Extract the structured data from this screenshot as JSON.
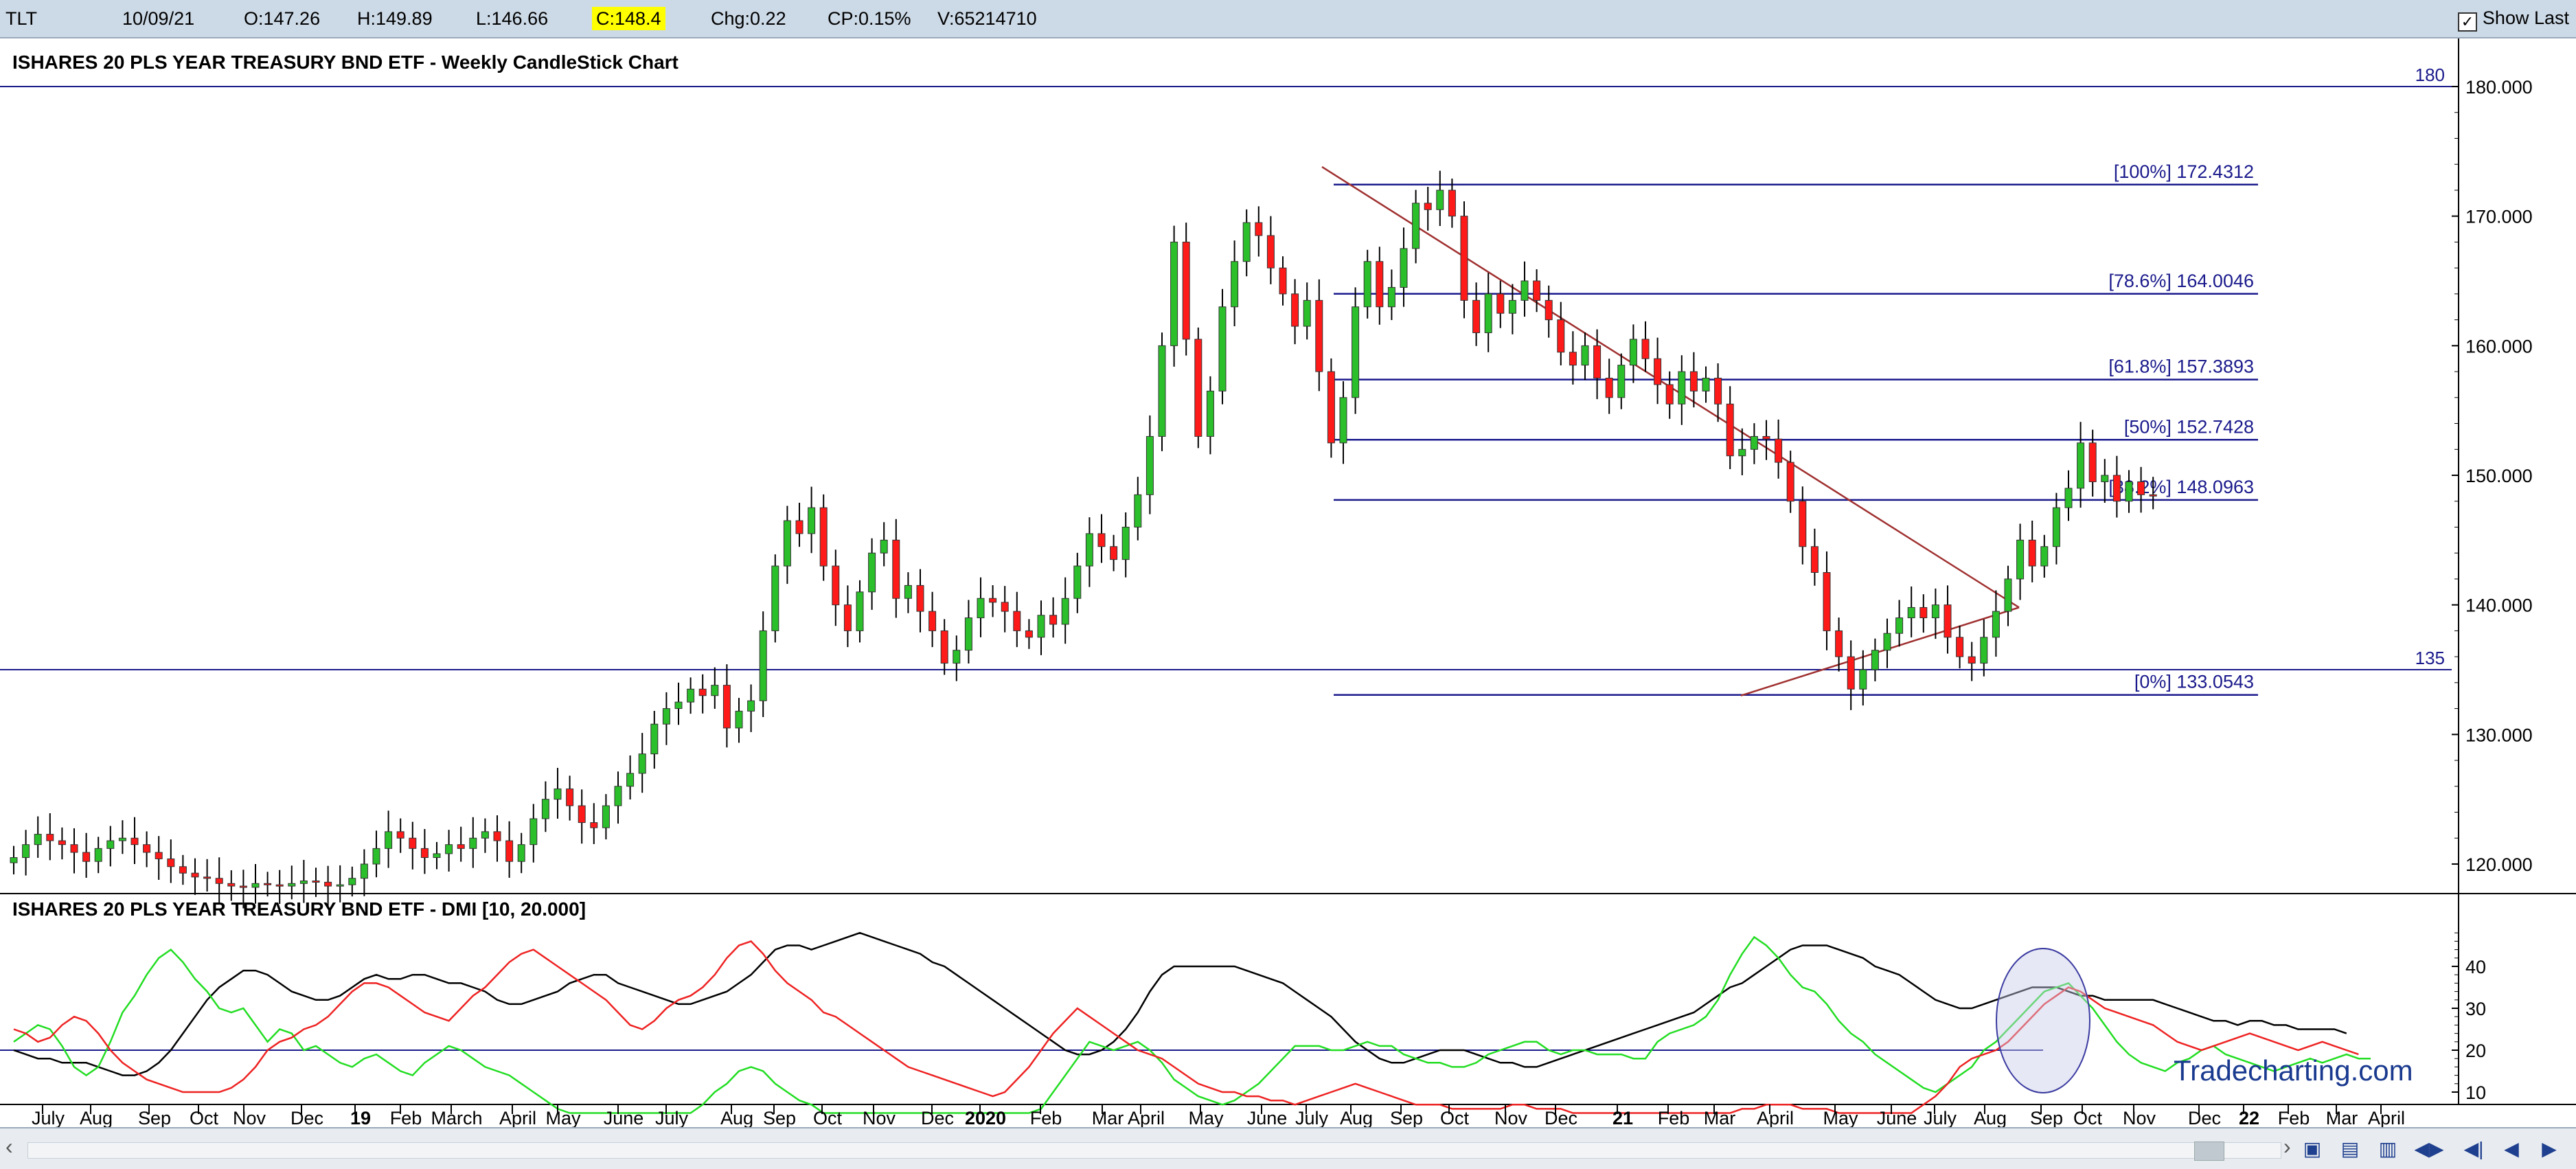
{
  "topbar": {
    "symbol": "TLT",
    "date": "10/09/21",
    "open": "O:147.26",
    "high": "H:149.89",
    "low": "L:146.66",
    "close": "C:148.4",
    "change": "Chg:0.22",
    "change_pct": "CP:0.15%",
    "volume": "V:65214710",
    "show_last_label": "Show Last"
  },
  "colors": {
    "up": "#2bbf2b",
    "down": "#ff1a1a",
    "fib_line": "#1a1a8c",
    "trend_line": "#a03030",
    "dmi_adx": "#000000",
    "dmi_plus": "#22dd22",
    "dmi_minus": "#ee2222",
    "ref_line": "#1a1a8c",
    "watermark": "#1a3a8f"
  },
  "chart_data": [
    {
      "type": "candlestick",
      "title": "ISHARES 20 PLS YEAR TREASURY BND ETF - Weekly CandleStick Chart",
      "ylim": [
        118,
        182
      ],
      "yticks": [
        120,
        130,
        140,
        150,
        160,
        170,
        180
      ],
      "ytick_labels": [
        "120.000",
        "130.000",
        "140.000",
        "150.000",
        "160.000",
        "170.000",
        "180.000"
      ],
      "horizontal_lines": [
        {
          "label": "180",
          "value": 180
        },
        {
          "label": "135",
          "value": 135
        }
      ],
      "fib_levels": [
        {
          "label": "[100%] 172.4312",
          "value": 172.4312
        },
        {
          "label": "[78.6%] 164.0046",
          "value": 164.0046
        },
        {
          "label": "[61.8%] 157.3893",
          "value": 157.3893
        },
        {
          "label": "[50%] 152.7428",
          "value": 152.7428
        },
        {
          "label": "[38.2%] 148.0963",
          "value": 148.0963
        },
        {
          "label": "[0%] 133.0543",
          "value": 133.0543
        }
      ],
      "trendlines": [
        {
          "from": [
            "2020-07",
            173.8
          ],
          "to": [
            "2021-08",
            139.8
          ]
        },
        {
          "from": [
            "2021-03",
            133.0
          ],
          "to": [
            "2021-08",
            139.8
          ]
        }
      ],
      "closes": [
        120.5,
        121.5,
        122.3,
        121.8,
        121.5,
        120.9,
        120.2,
        121.2,
        121.8,
        122.0,
        121.5,
        120.9,
        120.4,
        119.8,
        119.3,
        119.0,
        118.9,
        118.5,
        118.3,
        118.2,
        118.5,
        118.4,
        118.3,
        118.5,
        118.7,
        118.6,
        118.3,
        118.4,
        118.9,
        120.0,
        121.2,
        122.5,
        122.0,
        121.2,
        120.5,
        120.8,
        121.5,
        121.2,
        122.0,
        122.5,
        121.8,
        120.2,
        121.5,
        123.5,
        125.0,
        125.8,
        124.5,
        123.2,
        122.8,
        124.5,
        126.0,
        127.0,
        128.5,
        130.8,
        132.0,
        132.5,
        133.5,
        133.0,
        133.8,
        130.5,
        131.8,
        132.6,
        138.0,
        143.0,
        146.5,
        145.5,
        147.5,
        143.0,
        140.0,
        138.0,
        141.0,
        144.0,
        145.0,
        140.5,
        141.5,
        139.5,
        138.0,
        135.5,
        136.5,
        139.0,
        140.5,
        140.2,
        139.5,
        138.0,
        137.5,
        139.2,
        138.5,
        140.5,
        143.0,
        145.5,
        144.5,
        143.5,
        146.0,
        148.5,
        153.0,
        160.0,
        168.0,
        160.5,
        153.0,
        156.5,
        163.0,
        166.5,
        169.5,
        168.5,
        166.0,
        164.0,
        161.5,
        163.5,
        158.0,
        152.5,
        156.0,
        163.0,
        166.5,
        163.0,
        164.5,
        167.5,
        171.0,
        170.5,
        172.0,
        170.0,
        163.5,
        161.0,
        164.0,
        162.5,
        163.5,
        165.0,
        163.5,
        162.0,
        159.5,
        158.5,
        160.0,
        157.5,
        156.0,
        158.5,
        160.5,
        159.0,
        157.0,
        155.5,
        158.0,
        156.5,
        157.5,
        155.5,
        151.5,
        152.0,
        153.0,
        152.8,
        151.0,
        148.0,
        144.5,
        142.5,
        138.0,
        136.0,
        133.5,
        135.0,
        136.5,
        137.8,
        139.0,
        139.8,
        139.0,
        140.0,
        137.5,
        136.0,
        135.5,
        137.5,
        139.5,
        142.0,
        145.0,
        143.0,
        144.5,
        147.5,
        149.0,
        152.5,
        149.5,
        150.0,
        148.0,
        149.5,
        148.5,
        148.4
      ],
      "dmi": {
        "title": "ISHARES 20 PLS YEAR TREASURY BND ETF - DMI [10, 20.000]",
        "ylim": [
          5,
          48
        ],
        "yticks": [
          10,
          20,
          30,
          40
        ],
        "ref_level": 20,
        "series": [
          {
            "name": "",
            "values": [
              20,
              19,
              18,
              18,
              17,
              17,
              17,
              16,
              15,
              14,
              14,
              15,
              17,
              20,
              24,
              28,
              32,
              35,
              37,
              39,
              39,
              38,
              36,
              34,
              33,
              32,
              32,
              33,
              35,
              37,
              38,
              37,
              37,
              38,
              38,
              37,
              36,
              36,
              35,
              34,
              32,
              31,
              31,
              32,
              33,
              34,
              36,
              37,
              38,
              38,
              36,
              35,
              34,
              33,
              32,
              31,
              31,
              32,
              33,
              34,
              36,
              38,
              41,
              44,
              45,
              45,
              44,
              45,
              46,
              47,
              48,
              47,
              46,
              45,
              44,
              43,
              41,
              40,
              38,
              36,
              34,
              32,
              30,
              28,
              26,
              24,
              22,
              20,
              19,
              19,
              20,
              22,
              25,
              29,
              34,
              38,
              40,
              40,
              40,
              40,
              40,
              40,
              39,
              38,
              37,
              36,
              34,
              32,
              30,
              28,
              25,
              22,
              20,
              18,
              17,
              17,
              18,
              19,
              20,
              20,
              20,
              19,
              18,
              17,
              17,
              16,
              16,
              17,
              18,
              19,
              20,
              21,
              22,
              23,
              24,
              25,
              26,
              27,
              28,
              29,
              31,
              33,
              35,
              36,
              38,
              40,
              42,
              44,
              45,
              45,
              45,
              44,
              43,
              42,
              40,
              39,
              38,
              36,
              34,
              32,
              31,
              30,
              30,
              31,
              32,
              33,
              34,
              35,
              35,
              35,
              34,
              33,
              33,
              32,
              32,
              32,
              32,
              32,
              31,
              30,
              29,
              28,
              27,
              27,
              26,
              27,
              27,
              26,
              26,
              25,
              25,
              25,
              25,
              24
            ]
          },
          {
            "name": "",
            "values": [
              22,
              24,
              26,
              25,
              21,
              16,
              14,
              16,
              22,
              29,
              33,
              38,
              42,
              44,
              41,
              37,
              34,
              30,
              29,
              30,
              26,
              22,
              25,
              24,
              20,
              21,
              19,
              17,
              16,
              18,
              19,
              17,
              15,
              14,
              17,
              19,
              21,
              20,
              18,
              16,
              15,
              14,
              12,
              10,
              8,
              6,
              4,
              3,
              2,
              2,
              1,
              1,
              1,
              1,
              2,
              3,
              5,
              7,
              10,
              12,
              15,
              16,
              15,
              12,
              10,
              8,
              7,
              5,
              3,
              2,
              2,
              1,
              1,
              1,
              1,
              2,
              3,
              4,
              5,
              4,
              3,
              2,
              2,
              2,
              4,
              6,
              10,
              14,
              18,
              22,
              21,
              20,
              21,
              22,
              20,
              17,
              13,
              11,
              9,
              8,
              7,
              8,
              10,
              12,
              15,
              18,
              21,
              21,
              21,
              20,
              20,
              21,
              22,
              21,
              21,
              19,
              18,
              17,
              17,
              16,
              16,
              17,
              19,
              20,
              21,
              22,
              22,
              20,
              19,
              20,
              20,
              19,
              19,
              19,
              18,
              18,
              22,
              24,
              25,
              26,
              28,
              32,
              38,
              43,
              47,
              45,
              42,
              38,
              35,
              34,
              31,
              27,
              24,
              22,
              19,
              17,
              15,
              13,
              11,
              10,
              12,
              14,
              16,
              20,
              22,
              25,
              28,
              31,
              34,
              35,
              36,
              33,
              30,
              26,
              22,
              19,
              17,
              16,
              15,
              17,
              18,
              20,
              21,
              19,
              18,
              17,
              16,
              15,
              16,
              17,
              18,
              17,
              18,
              19,
              18,
              18
            ]
          },
          {
            "name": "",
            "values": [
              25,
              24,
              22,
              23,
              26,
              28,
              27,
              24,
              20,
              17,
              15,
              13,
              12,
              11,
              10,
              10,
              10,
              10,
              11,
              13,
              16,
              20,
              22,
              23,
              25,
              26,
              28,
              31,
              34,
              36,
              36,
              35,
              33,
              31,
              29,
              28,
              27,
              30,
              33,
              35,
              38,
              41,
              43,
              44,
              42,
              40,
              38,
              36,
              34,
              32,
              29,
              26,
              25,
              27,
              30,
              32,
              33,
              35,
              38,
              42,
              45,
              46,
              43,
              39,
              36,
              34,
              32,
              29,
              28,
              26,
              24,
              22,
              20,
              18,
              16,
              15,
              14,
              13,
              12,
              11,
              10,
              9,
              10,
              13,
              16,
              20,
              24,
              27,
              30,
              28,
              26,
              24,
              22,
              20,
              19,
              18,
              16,
              14,
              12,
              11,
              10,
              10,
              9,
              9,
              8,
              8,
              7,
              8,
              9,
              10,
              11,
              12,
              11,
              10,
              9,
              8,
              7,
              7,
              7,
              6,
              6,
              6,
              6,
              6,
              7,
              7,
              6,
              6,
              6,
              5,
              5,
              5,
              5,
              5,
              4,
              4,
              4,
              3,
              3,
              3,
              4,
              4,
              5,
              6,
              6,
              7,
              7,
              7,
              6,
              6,
              6,
              5,
              5,
              4,
              4,
              4,
              5,
              5,
              7,
              9,
              12,
              16,
              18,
              19,
              20,
              22,
              25,
              28,
              31,
              33,
              35,
              34,
              32,
              30,
              29,
              28,
              27,
              26,
              24,
              22,
              21,
              20,
              21,
              22,
              23,
              24,
              23,
              22,
              21,
              20,
              21,
              22,
              21,
              20,
              19
            ]
          }
        ]
      }
    }
  ],
  "xaxis": {
    "labels": [
      "July",
      "Aug",
      "Sep",
      "Oct",
      "Nov",
      "Dec",
      "19",
      "Feb",
      "March",
      "April",
      "May",
      "June",
      "July",
      "Aug",
      "Sep",
      "Oct",
      "Nov",
      "Dec",
      "2020",
      "Feb",
      "Mar",
      "April",
      "May",
      "June",
      "July",
      "Aug",
      "Sep",
      "Oct",
      "Nov",
      "Dec",
      "21",
      "Feb",
      "Mar",
      "April",
      "May",
      "June",
      "July",
      "Aug",
      "Sep",
      "Oct",
      "Nov",
      "Dec",
      "22",
      "Feb",
      "Mar",
      "April"
    ],
    "bold": [
      "19",
      "2020",
      "21",
      "22"
    ]
  },
  "watermark": "Tradecharting.com",
  "bottombar": {
    "icons": [
      "save-icon",
      "print-icon",
      "export-icon",
      "scroll-both-icon",
      "first-icon",
      "prev-icon",
      "next-icon"
    ]
  }
}
